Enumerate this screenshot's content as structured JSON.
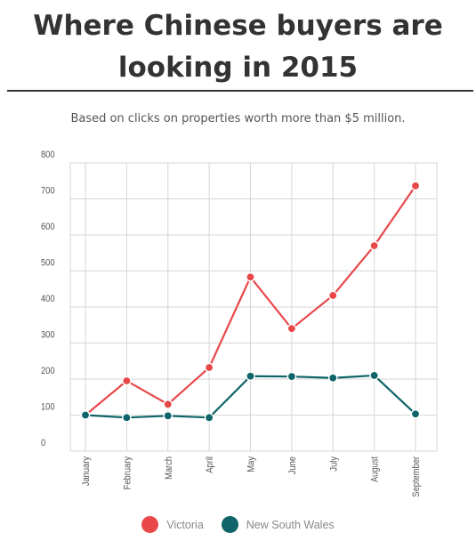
{
  "title": "Where Chinese buyers are looking in 2015",
  "subtitle": "Based on clicks on properties worth more than $5 million.",
  "colors": {
    "victoria": "#e8484a",
    "nsw": "#0e6468",
    "grid": "#d6d6d6",
    "text": "#333333"
  },
  "chart_data": {
    "type": "line",
    "categories": [
      "January",
      "February",
      "March",
      "April",
      "May",
      "June",
      "July",
      "August",
      "September"
    ],
    "ylim": [
      0,
      800
    ],
    "yticks": [
      "0",
      "100",
      "200",
      "300",
      "400",
      "500",
      "600",
      "700",
      "800"
    ],
    "grid": true,
    "legend_position": "bottom",
    "series": [
      {
        "name": "Victoria",
        "color": "#e8484a",
        "values": [
          100,
          195,
          130,
          232,
          483,
          340,
          432,
          570,
          736
        ]
      },
      {
        "name": "New South Wales",
        "color": "#0e6468",
        "values": [
          100,
          93,
          98,
          93,
          208,
          207,
          203,
          210,
          103
        ]
      }
    ]
  }
}
